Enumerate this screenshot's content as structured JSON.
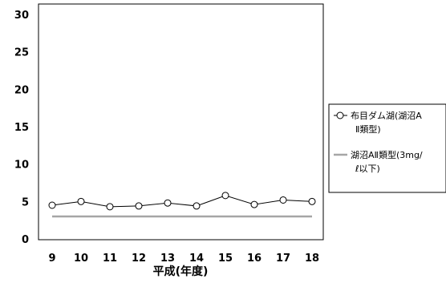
{
  "chart_data": {
    "type": "line",
    "xlabel": "平成(年度)",
    "ylabel": "",
    "x": [
      "9",
      "10",
      "11",
      "12",
      "13",
      "14",
      "15",
      "16",
      "17",
      "18"
    ],
    "ylim": [
      0,
      30
    ],
    "yticks": [
      "0",
      "5",
      "10",
      "15",
      "20",
      "25",
      "30"
    ],
    "grid": false,
    "legend_position": "right",
    "series": [
      {
        "name": "布目ダム湖(湖沼AⅡ類型)",
        "legend_lines": [
          "布目ダム湖(湖沼A",
          "Ⅱ類型)"
        ],
        "values": [
          4.5,
          5.0,
          4.3,
          4.4,
          4.8,
          4.4,
          5.8,
          4.6,
          5.2,
          5.0
        ],
        "marker": "circle",
        "color": "#000000"
      },
      {
        "name": "湖沼AⅡ類型(3mg/ℓ以下)",
        "legend_lines": [
          "湖沼AⅡ類型(3mg/",
          "ℓ以下)"
        ],
        "values": [
          3,
          3,
          3,
          3,
          3,
          3,
          3,
          3,
          3,
          3
        ],
        "marker": "none",
        "color": "#a6a6a6"
      }
    ]
  }
}
